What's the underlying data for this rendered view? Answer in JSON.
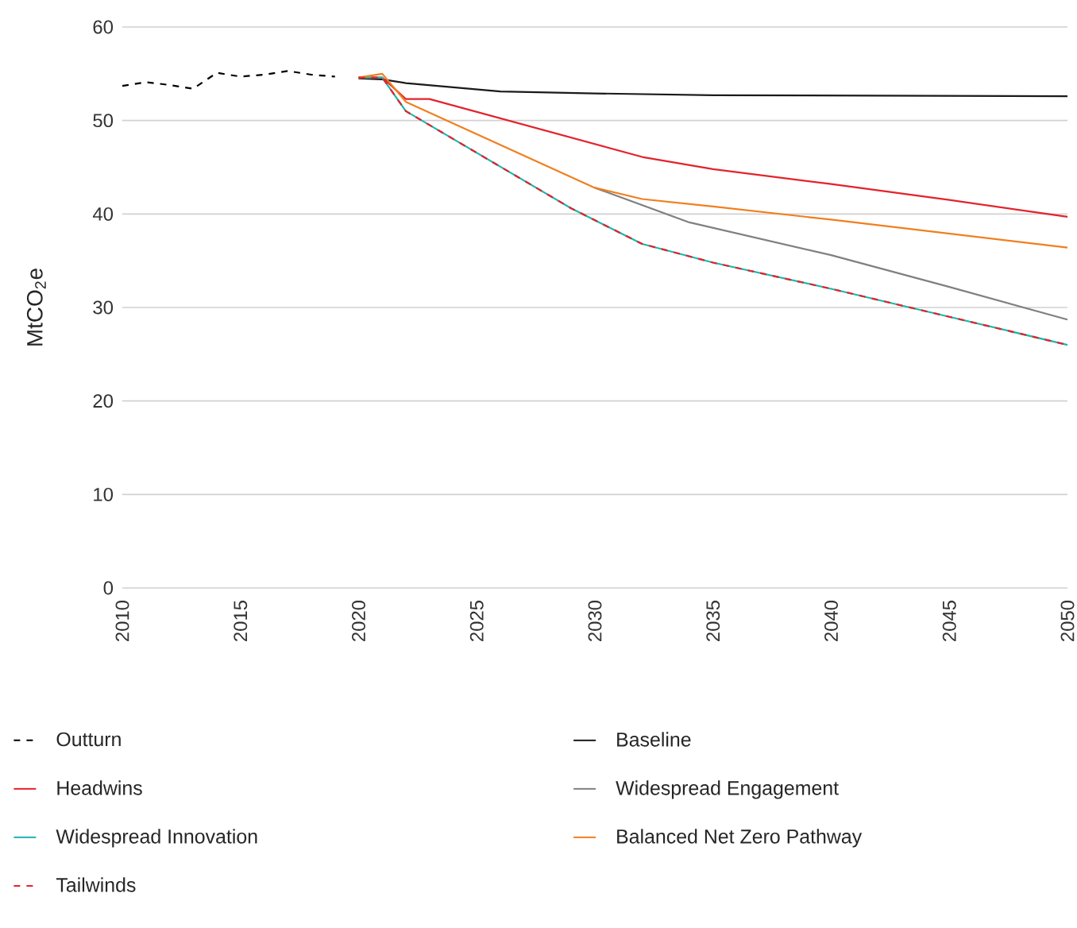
{
  "chart_data": {
    "type": "line",
    "ylabel": "MtCO$_{2}$e",
    "xlim": [
      2010,
      2050
    ],
    "ylim": [
      0,
      60
    ],
    "xticks": [
      2010,
      2015,
      2020,
      2025,
      2030,
      2035,
      2040,
      2045,
      2050
    ],
    "yticks": [
      0,
      10,
      20,
      30,
      40,
      50,
      60
    ],
    "grid": "y",
    "legend": "bottom",
    "series": [
      {
        "name": "Outturn",
        "color": "#000000",
        "line_style": "dashed",
        "x": [
          2010,
          2011,
          2012,
          2013,
          2014,
          2015,
          2016,
          2017,
          2018,
          2019
        ],
        "values": [
          53.7,
          54.1,
          53.8,
          53.4,
          55.1,
          54.7,
          54.9,
          55.3,
          54.9,
          54.7
        ]
      },
      {
        "name": "Baseline",
        "color": "#1a1a1a",
        "line_style": "solid",
        "x": [
          2020,
          2021,
          2022,
          2026,
          2030,
          2035,
          2050
        ],
        "values": [
          54.5,
          54.4,
          54.0,
          53.1,
          52.9,
          52.7,
          52.6
        ]
      },
      {
        "name": "Headwins",
        "color": "#e3232c",
        "line_style": "solid",
        "x": [
          2020,
          2021,
          2022,
          2023,
          2032,
          2035,
          2040,
          2045,
          2050
        ],
        "values": [
          54.6,
          54.6,
          52.3,
          52.3,
          46.1,
          44.8,
          43.2,
          41.5,
          39.7
        ]
      },
      {
        "name": "Widespread Engagement",
        "color": "#808080",
        "line_style": "solid",
        "x": [
          2030,
          2034,
          2040,
          2045,
          2050
        ],
        "values": [
          42.8,
          39.1,
          35.6,
          32.2,
          28.7
        ]
      },
      {
        "name": "Widespread Innovation",
        "color": "#1fb5ad",
        "line_style": "solid",
        "x": [
          2020,
          2021,
          2022,
          2029,
          2032,
          2035,
          2040,
          2045,
          2050
        ],
        "values": [
          54.6,
          54.6,
          51.0,
          40.6,
          36.8,
          34.8,
          32.0,
          29.0,
          26.0
        ]
      },
      {
        "name": "Balanced Net Zero Pathway",
        "color": "#f07f1e",
        "line_style": "solid",
        "x": [
          2020,
          2021,
          2022,
          2030,
          2032,
          2035,
          2040,
          2045,
          2050
        ],
        "values": [
          54.6,
          55.0,
          52.0,
          42.8,
          41.6,
          40.8,
          39.4,
          37.9,
          36.4
        ]
      },
      {
        "name": "Tailwinds",
        "color": "#e3232c",
        "line_style": "dashed",
        "x": [
          2020,
          2021,
          2022,
          2029,
          2032,
          2035,
          2040,
          2045,
          2050
        ],
        "values": [
          54.6,
          54.6,
          51.0,
          40.6,
          36.8,
          34.8,
          32.0,
          29.0,
          26.0
        ]
      }
    ]
  }
}
